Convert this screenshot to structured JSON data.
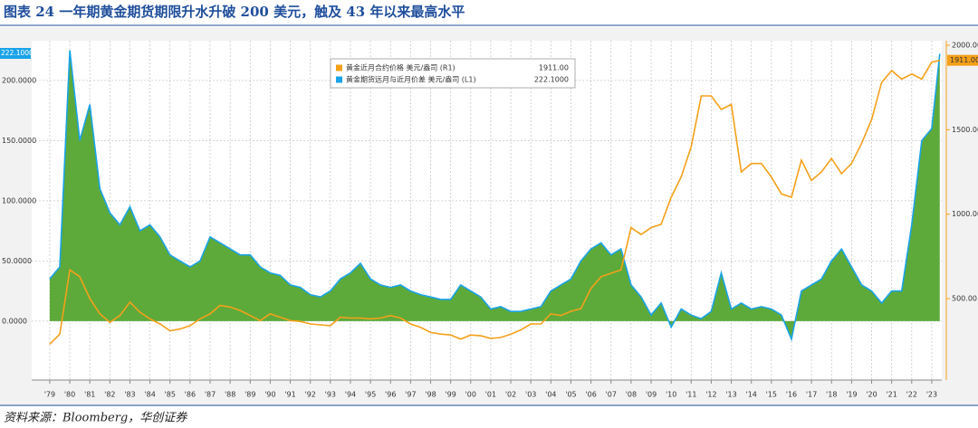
{
  "chart_data": {
    "type": "area-line",
    "title": "图表 24  一年期黄金期货期限升水升破 200 美元，触及 43 年以来最高水平",
    "source": "资料来源：Bloomberg，华创证券",
    "x": [
      1979.0,
      1979.5,
      1980.0,
      1980.5,
      1981.0,
      1981.5,
      1982.0,
      1982.5,
      1983.0,
      1983.5,
      1984.0,
      1984.5,
      1985.0,
      1985.5,
      1986.0,
      1986.5,
      1987.0,
      1987.5,
      1988.0,
      1988.5,
      1989.0,
      1989.5,
      1990.0,
      1990.5,
      1991.0,
      1991.5,
      1992.0,
      1992.5,
      1993.0,
      1993.5,
      1994.0,
      1994.5,
      1995.0,
      1995.5,
      1996.0,
      1996.5,
      1997.0,
      1997.5,
      1998.0,
      1998.5,
      1999.0,
      1999.5,
      2000.0,
      2000.5,
      2001.0,
      2001.5,
      2002.0,
      2002.5,
      2003.0,
      2003.5,
      2004.0,
      2004.5,
      2005.0,
      2005.5,
      2006.0,
      2006.5,
      2007.0,
      2007.5,
      2008.0,
      2008.5,
      2009.0,
      2009.5,
      2010.0,
      2010.5,
      2011.0,
      2011.5,
      2012.0,
      2012.5,
      2013.0,
      2013.5,
      2014.0,
      2014.5,
      2015.0,
      2015.5,
      2016.0,
      2016.5,
      2017.0,
      2017.5,
      2018.0,
      2018.5,
      2019.0,
      2019.5,
      2020.0,
      2020.5,
      2021.0,
      2021.5,
      2022.0,
      2022.5,
      2023.0,
      2023.4
    ],
    "series": [
      {
        "name": "黄金近月合约价格 美元/盎司 (R1)",
        "last_label": "1911.00",
        "color": "#f5a01a",
        "axis": "y2",
        "values": [
          230,
          290,
          670,
          630,
          500,
          410,
          360,
          400,
          480,
          420,
          380,
          350,
          310,
          320,
          340,
          380,
          410,
          460,
          450,
          430,
          400,
          370,
          410,
          390,
          370,
          365,
          350,
          345,
          340,
          390,
          385,
          385,
          380,
          385,
          400,
          385,
          350,
          330,
          300,
          290,
          285,
          260,
          285,
          280,
          265,
          270,
          290,
          315,
          350,
          350,
          410,
          400,
          425,
          440,
          560,
          630,
          650,
          670,
          920,
          880,
          920,
          940,
          1100,
          1220,
          1400,
          1700,
          1700,
          1620,
          1650,
          1250,
          1300,
          1300,
          1220,
          1120,
          1100,
          1320,
          1200,
          1250,
          1330,
          1240,
          1300,
          1420,
          1560,
          1780,
          1850,
          1800,
          1830,
          1800,
          1900,
          1911
        ]
      },
      {
        "name": "黄金期货远月与近月价差 美元/盎司 (L1)",
        "last_label": "222.1000",
        "color": "#1aa3e8",
        "fill": "#5daa3a",
        "values": [
          35,
          45,
          225,
          150,
          180,
          110,
          90,
          80,
          95,
          75,
          80,
          70,
          55,
          50,
          45,
          50,
          70,
          65,
          60,
          55,
          55,
          45,
          40,
          38,
          30,
          28,
          22,
          20,
          25,
          35,
          40,
          48,
          35,
          30,
          28,
          30,
          25,
          22,
          20,
          18,
          18,
          30,
          25,
          20,
          10,
          12,
          8,
          8,
          10,
          12,
          25,
          30,
          35,
          50,
          60,
          65,
          55,
          60,
          30,
          20,
          5,
          15,
          -5,
          10,
          5,
          2,
          8,
          40,
          10,
          15,
          10,
          12,
          10,
          5,
          -15,
          25,
          30,
          35,
          50,
          60,
          45,
          30,
          25,
          15,
          25,
          25,
          80,
          150,
          160,
          222.1
        ]
      }
    ],
    "xlim": [
      1978.1,
      2023.5
    ],
    "xticks": [
      {
        "value": 1979,
        "label": "'79"
      },
      {
        "value": 1980,
        "label": "'80"
      },
      {
        "value": 1981,
        "label": "'81"
      },
      {
        "value": 1982,
        "label": "'82"
      },
      {
        "value": 1983,
        "label": "'83"
      },
      {
        "value": 1984,
        "label": "'84"
      },
      {
        "value": 1985,
        "label": "'85"
      },
      {
        "value": 1986,
        "label": "'86"
      },
      {
        "value": 1987,
        "label": "'87"
      },
      {
        "value": 1988,
        "label": "'88"
      },
      {
        "value": 1989,
        "label": "'89"
      },
      {
        "value": 1990,
        "label": "'90"
      },
      {
        "value": 1991,
        "label": "'91"
      },
      {
        "value": 1992,
        "label": "'92"
      },
      {
        "value": 1993,
        "label": "'93"
      },
      {
        "value": 1994,
        "label": "'94"
      },
      {
        "value": 1995,
        "label": "'95"
      },
      {
        "value": 1996,
        "label": "'96"
      },
      {
        "value": 1997,
        "label": "'97"
      },
      {
        "value": 1998,
        "label": "'98"
      },
      {
        "value": 1999,
        "label": "'99"
      },
      {
        "value": 2000,
        "label": "'00"
      },
      {
        "value": 2001,
        "label": "'01"
      },
      {
        "value": 2002,
        "label": "'02"
      },
      {
        "value": 2003,
        "label": "'03"
      },
      {
        "value": 2004,
        "label": "'04"
      },
      {
        "value": 2005,
        "label": "'05"
      },
      {
        "value": 2006,
        "label": "'06"
      },
      {
        "value": 2007,
        "label": "'07"
      },
      {
        "value": 2008,
        "label": "'08"
      },
      {
        "value": 2009,
        "label": "'09"
      },
      {
        "value": 2010,
        "label": "'10"
      },
      {
        "value": 2011,
        "label": "'11"
      },
      {
        "value": 2012,
        "label": "'12"
      },
      {
        "value": 2013,
        "label": "'13"
      },
      {
        "value": 2014,
        "label": "'14"
      },
      {
        "value": 2015,
        "label": "'15"
      },
      {
        "value": 2016,
        "label": "'16"
      },
      {
        "value": 2017,
        "label": "'17"
      },
      {
        "value": 2018,
        "label": "'18"
      },
      {
        "value": 2019,
        "label": "'19"
      },
      {
        "value": 2020,
        "label": "'20"
      },
      {
        "value": 2021,
        "label": "'21"
      },
      {
        "value": 2022,
        "label": "'22"
      },
      {
        "value": 2023,
        "label": "'23"
      }
    ],
    "ylim": [
      -49,
      233
    ],
    "yticks": [
      {
        "value": 0,
        "label": "0.0000"
      },
      {
        "value": 50,
        "label": "50.0000"
      },
      {
        "value": 100,
        "label": "100.0000"
      },
      {
        "value": 150,
        "label": "150.0000"
      },
      {
        "value": 200,
        "label": "200.0000"
      }
    ],
    "y2lim": [
      18,
      2027
    ],
    "y2ticks": [
      {
        "value": 500,
        "label": "500.00"
      },
      {
        "value": 1000,
        "label": "1000.00"
      },
      {
        "value": 1500,
        "label": "1500.00"
      },
      {
        "value": 2000,
        "label": "2000.00"
      }
    ],
    "grid": true
  }
}
